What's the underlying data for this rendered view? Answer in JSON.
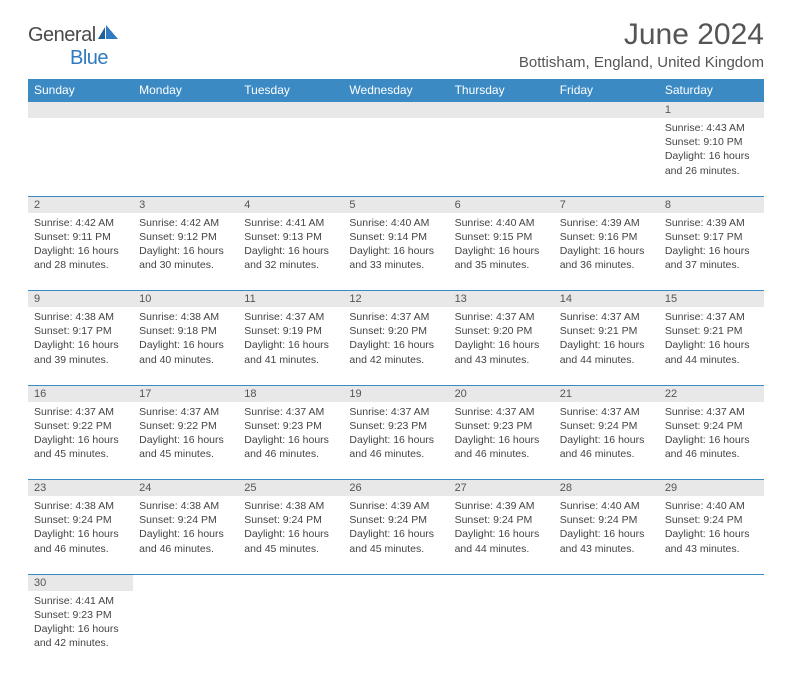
{
  "logo": {
    "text1": "General",
    "text2": "Blue",
    "icon_color": "#2f7ac0"
  },
  "title": "June 2024",
  "location": "Bottisham, England, United Kingdom",
  "header_bg": "#3b8ac4",
  "header_text_color": "#ffffff",
  "daynum_bg": "#e8e8e8",
  "border_color": "#3b8ac4",
  "days": [
    "Sunday",
    "Monday",
    "Tuesday",
    "Wednesday",
    "Thursday",
    "Friday",
    "Saturday"
  ],
  "weeks": [
    [
      null,
      null,
      null,
      null,
      null,
      null,
      {
        "n": "1",
        "sr": "4:43 AM",
        "ss": "9:10 PM",
        "dl": "16 hours and 26 minutes."
      }
    ],
    [
      {
        "n": "2",
        "sr": "4:42 AM",
        "ss": "9:11 PM",
        "dl": "16 hours and 28 minutes."
      },
      {
        "n": "3",
        "sr": "4:42 AM",
        "ss": "9:12 PM",
        "dl": "16 hours and 30 minutes."
      },
      {
        "n": "4",
        "sr": "4:41 AM",
        "ss": "9:13 PM",
        "dl": "16 hours and 32 minutes."
      },
      {
        "n": "5",
        "sr": "4:40 AM",
        "ss": "9:14 PM",
        "dl": "16 hours and 33 minutes."
      },
      {
        "n": "6",
        "sr": "4:40 AM",
        "ss": "9:15 PM",
        "dl": "16 hours and 35 minutes."
      },
      {
        "n": "7",
        "sr": "4:39 AM",
        "ss": "9:16 PM",
        "dl": "16 hours and 36 minutes."
      },
      {
        "n": "8",
        "sr": "4:39 AM",
        "ss": "9:17 PM",
        "dl": "16 hours and 37 minutes."
      }
    ],
    [
      {
        "n": "9",
        "sr": "4:38 AM",
        "ss": "9:17 PM",
        "dl": "16 hours and 39 minutes."
      },
      {
        "n": "10",
        "sr": "4:38 AM",
        "ss": "9:18 PM",
        "dl": "16 hours and 40 minutes."
      },
      {
        "n": "11",
        "sr": "4:37 AM",
        "ss": "9:19 PM",
        "dl": "16 hours and 41 minutes."
      },
      {
        "n": "12",
        "sr": "4:37 AM",
        "ss": "9:20 PM",
        "dl": "16 hours and 42 minutes."
      },
      {
        "n": "13",
        "sr": "4:37 AM",
        "ss": "9:20 PM",
        "dl": "16 hours and 43 minutes."
      },
      {
        "n": "14",
        "sr": "4:37 AM",
        "ss": "9:21 PM",
        "dl": "16 hours and 44 minutes."
      },
      {
        "n": "15",
        "sr": "4:37 AM",
        "ss": "9:21 PM",
        "dl": "16 hours and 44 minutes."
      }
    ],
    [
      {
        "n": "16",
        "sr": "4:37 AM",
        "ss": "9:22 PM",
        "dl": "16 hours and 45 minutes."
      },
      {
        "n": "17",
        "sr": "4:37 AM",
        "ss": "9:22 PM",
        "dl": "16 hours and 45 minutes."
      },
      {
        "n": "18",
        "sr": "4:37 AM",
        "ss": "9:23 PM",
        "dl": "16 hours and 46 minutes."
      },
      {
        "n": "19",
        "sr": "4:37 AM",
        "ss": "9:23 PM",
        "dl": "16 hours and 46 minutes."
      },
      {
        "n": "20",
        "sr": "4:37 AM",
        "ss": "9:23 PM",
        "dl": "16 hours and 46 minutes."
      },
      {
        "n": "21",
        "sr": "4:37 AM",
        "ss": "9:24 PM",
        "dl": "16 hours and 46 minutes."
      },
      {
        "n": "22",
        "sr": "4:37 AM",
        "ss": "9:24 PM",
        "dl": "16 hours and 46 minutes."
      }
    ],
    [
      {
        "n": "23",
        "sr": "4:38 AM",
        "ss": "9:24 PM",
        "dl": "16 hours and 46 minutes."
      },
      {
        "n": "24",
        "sr": "4:38 AM",
        "ss": "9:24 PM",
        "dl": "16 hours and 46 minutes."
      },
      {
        "n": "25",
        "sr": "4:38 AM",
        "ss": "9:24 PM",
        "dl": "16 hours and 45 minutes."
      },
      {
        "n": "26",
        "sr": "4:39 AM",
        "ss": "9:24 PM",
        "dl": "16 hours and 45 minutes."
      },
      {
        "n": "27",
        "sr": "4:39 AM",
        "ss": "9:24 PM",
        "dl": "16 hours and 44 minutes."
      },
      {
        "n": "28",
        "sr": "4:40 AM",
        "ss": "9:24 PM",
        "dl": "16 hours and 43 minutes."
      },
      {
        "n": "29",
        "sr": "4:40 AM",
        "ss": "9:24 PM",
        "dl": "16 hours and 43 minutes."
      }
    ],
    [
      {
        "n": "30",
        "sr": "4:41 AM",
        "ss": "9:23 PM",
        "dl": "16 hours and 42 minutes."
      },
      null,
      null,
      null,
      null,
      null,
      null
    ]
  ],
  "labels": {
    "sunrise": "Sunrise:",
    "sunset": "Sunset:",
    "daylight": "Daylight:"
  }
}
